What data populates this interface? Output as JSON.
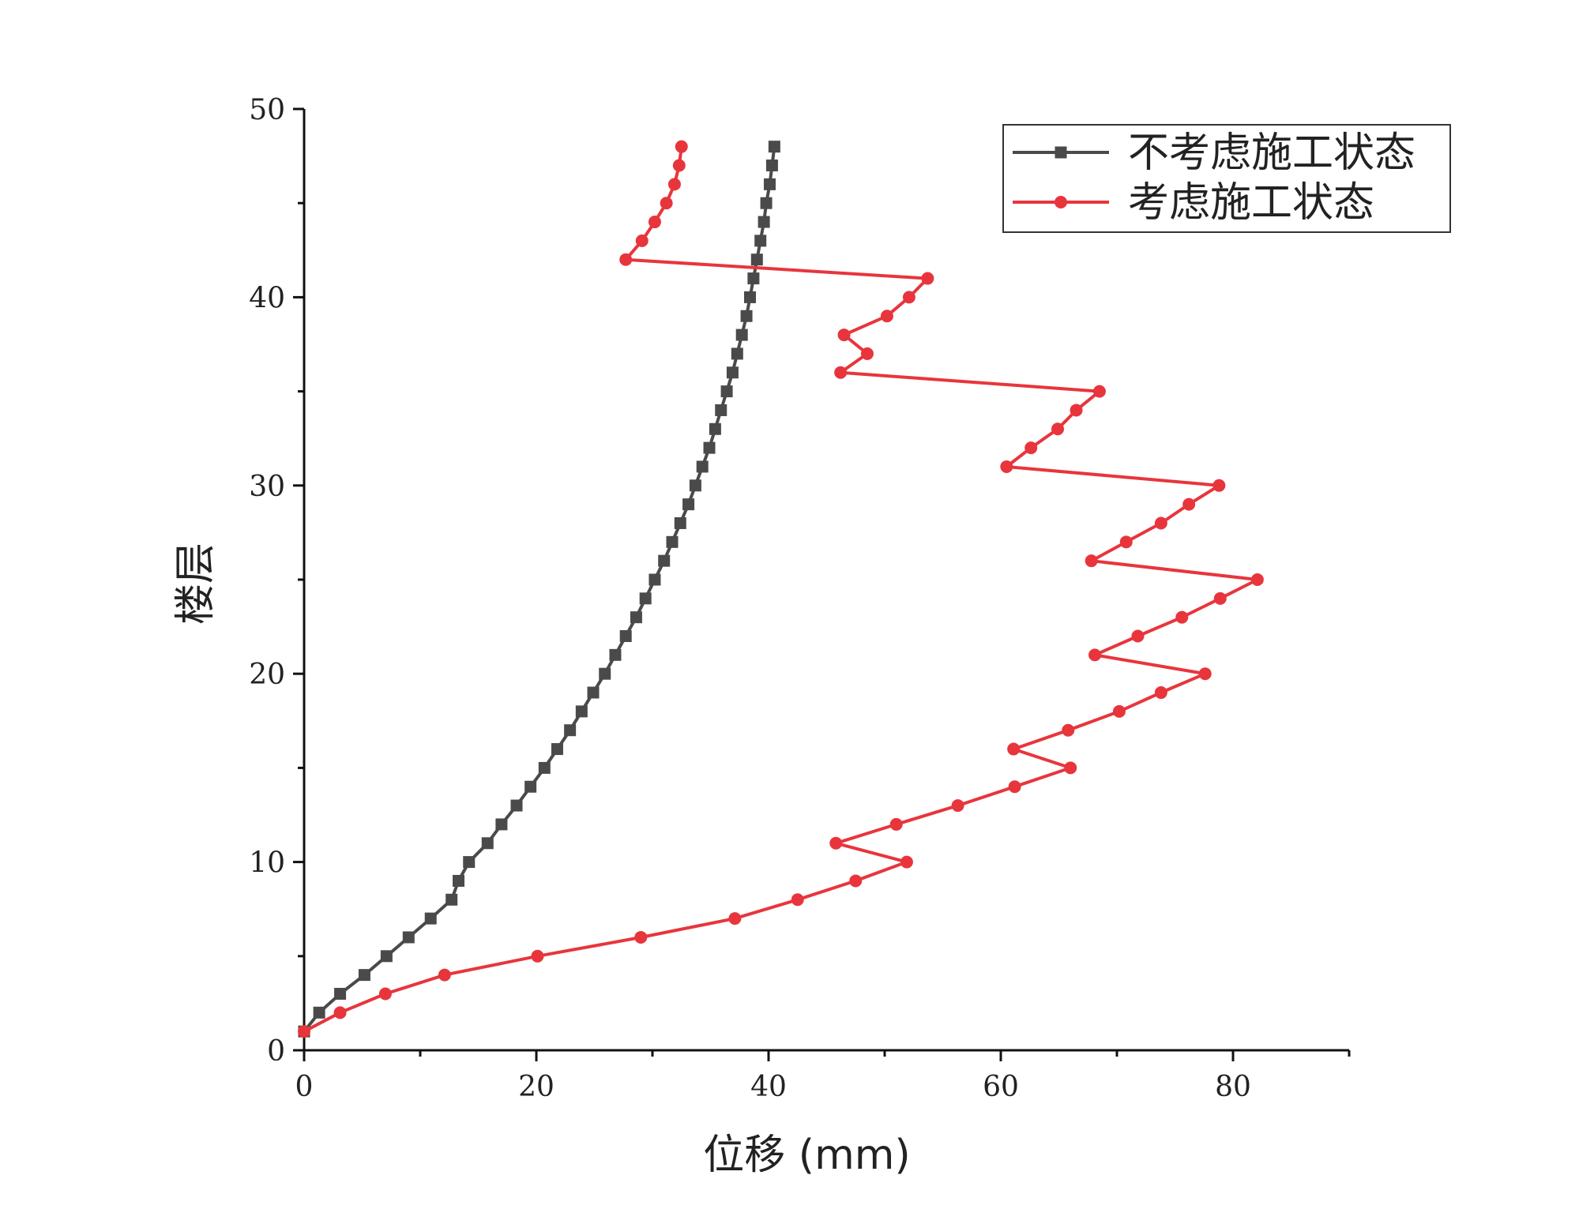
{
  "chart_data": {
    "type": "line",
    "xlabel": "位移 (mm)",
    "ylabel": "楼层",
    "xlim": [
      0,
      90
    ],
    "ylim": [
      0,
      50
    ],
    "x_ticks": [
      0,
      20,
      40,
      60,
      80
    ],
    "y_ticks": [
      0,
      10,
      20,
      30,
      40,
      50
    ],
    "grid": false,
    "legend_position": "top-right",
    "series": [
      {
        "name": "不考虑施工状态",
        "color": "#4a4a4a",
        "marker": "square",
        "points": [
          [
            0.0,
            1
          ],
          [
            1.3,
            2
          ],
          [
            3.1,
            3
          ],
          [
            5.2,
            4
          ],
          [
            7.1,
            5
          ],
          [
            9.0,
            6
          ],
          [
            10.9,
            7
          ],
          [
            12.7,
            8
          ],
          [
            13.3,
            9
          ],
          [
            14.2,
            10
          ],
          [
            15.8,
            11
          ],
          [
            17.0,
            12
          ],
          [
            18.3,
            13
          ],
          [
            19.5,
            14
          ],
          [
            20.7,
            15
          ],
          [
            21.8,
            16
          ],
          [
            22.9,
            17
          ],
          [
            23.9,
            18
          ],
          [
            24.9,
            19
          ],
          [
            25.9,
            20
          ],
          [
            26.8,
            21
          ],
          [
            27.7,
            22
          ],
          [
            28.6,
            23
          ],
          [
            29.4,
            24
          ],
          [
            30.2,
            25
          ],
          [
            31.0,
            26
          ],
          [
            31.7,
            27
          ],
          [
            32.4,
            28
          ],
          [
            33.1,
            29
          ],
          [
            33.7,
            30
          ],
          [
            34.3,
            31
          ],
          [
            34.9,
            32
          ],
          [
            35.4,
            33
          ],
          [
            35.9,
            34
          ],
          [
            36.4,
            35
          ],
          [
            36.9,
            36
          ],
          [
            37.3,
            37
          ],
          [
            37.7,
            38
          ],
          [
            38.1,
            39
          ],
          [
            38.4,
            40
          ],
          [
            38.7,
            41
          ],
          [
            39.0,
            42
          ],
          [
            39.3,
            43
          ],
          [
            39.6,
            44
          ],
          [
            39.8,
            45
          ],
          [
            40.1,
            46
          ],
          [
            40.3,
            47
          ],
          [
            40.5,
            48
          ]
        ]
      },
      {
        "name": "考虑施工状态",
        "color": "#e8353c",
        "marker": "circle",
        "points": [
          [
            0.0,
            1
          ],
          [
            3.1,
            2
          ],
          [
            7.0,
            3
          ],
          [
            12.1,
            4
          ],
          [
            20.1,
            5
          ],
          [
            29.0,
            6
          ],
          [
            37.1,
            7
          ],
          [
            42.5,
            8
          ],
          [
            47.5,
            9
          ],
          [
            51.9,
            10
          ],
          [
            45.8,
            11
          ],
          [
            51.0,
            12
          ],
          [
            56.3,
            13
          ],
          [
            61.2,
            14
          ],
          [
            66.0,
            15
          ],
          [
            61.1,
            16
          ],
          [
            65.8,
            17
          ],
          [
            70.2,
            18
          ],
          [
            73.8,
            19
          ],
          [
            77.6,
            20
          ],
          [
            68.1,
            21
          ],
          [
            71.8,
            22
          ],
          [
            75.6,
            23
          ],
          [
            78.9,
            24
          ],
          [
            82.1,
            25
          ],
          [
            67.8,
            26
          ],
          [
            70.8,
            27
          ],
          [
            73.8,
            28
          ],
          [
            76.2,
            29
          ],
          [
            78.8,
            30
          ],
          [
            60.5,
            31
          ],
          [
            62.6,
            32
          ],
          [
            64.9,
            33
          ],
          [
            66.5,
            34
          ],
          [
            68.5,
            35
          ],
          [
            46.2,
            36
          ],
          [
            48.5,
            37
          ],
          [
            46.5,
            38
          ],
          [
            50.2,
            39
          ],
          [
            52.1,
            40
          ],
          [
            53.7,
            41
          ],
          [
            27.7,
            42
          ],
          [
            29.1,
            43
          ],
          [
            30.2,
            44
          ],
          [
            31.2,
            45
          ],
          [
            31.9,
            46
          ],
          [
            32.3,
            47
          ],
          [
            32.5,
            48
          ]
        ]
      }
    ]
  }
}
